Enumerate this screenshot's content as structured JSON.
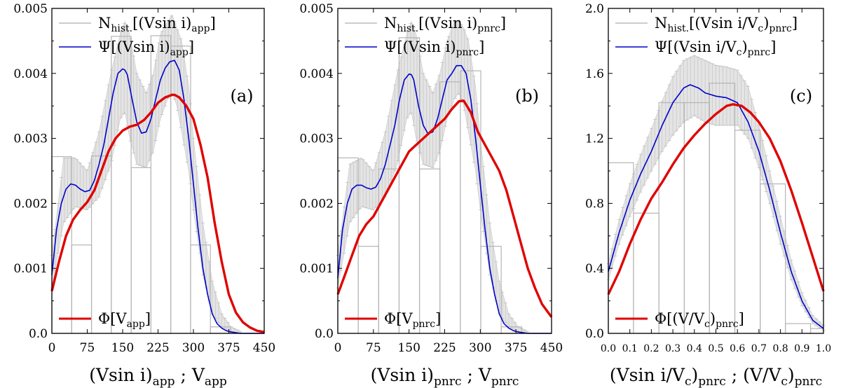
{
  "chart_data": [
    {
      "type": "line",
      "panel_label": "(a)",
      "xlim": [
        0,
        450
      ],
      "ylim": [
        0,
        0.005
      ],
      "xticks": [
        "0",
        "75",
        "150",
        "225",
        "300",
        "375",
        "450"
      ],
      "yticks": [
        "0.0",
        "0.001",
        "0.002",
        "0.003",
        "0.004",
        "0.005"
      ],
      "xlabel": {
        "a": "(Vsin i)",
        "a_sub": "app",
        "b": " ; V",
        "b_sub": "app"
      },
      "legend": [
        {
          "name": "N",
          "sub": "hist.",
          "rest": "[(Vsin i)",
          "rest_sub": "app",
          "end": "]",
          "color": "#bbbbbb"
        },
        {
          "name": "Ψ[(Vsin i)",
          "sub": "app",
          "rest": "]",
          "color": "#0000cc"
        },
        {
          "name": "Φ[V",
          "sub": "app",
          "rest": "]",
          "color": "#e00000"
        }
      ],
      "histogram": {
        "edges": [
          0,
          42,
          84,
          126,
          168,
          210,
          252,
          294,
          336,
          378
        ],
        "values": [
          0.00272,
          0.00136,
          0.00273,
          0.00457,
          0.00255,
          0.00458,
          0.00442,
          0.00136,
          0.0001
        ]
      },
      "psi": {
        "x": [
          0,
          10,
          20,
          30,
          40,
          50,
          60,
          70,
          80,
          90,
          100,
          110,
          120,
          130,
          140,
          150,
          155,
          160,
          170,
          180,
          190,
          200,
          210,
          220,
          230,
          240,
          250,
          260,
          270,
          280,
          290,
          300,
          310,
          320,
          330,
          340,
          350,
          360,
          370,
          380,
          390,
          400,
          420,
          450
        ],
        "y": [
          0.0009,
          0.0016,
          0.002,
          0.00222,
          0.0023,
          0.00228,
          0.00222,
          0.00218,
          0.0022,
          0.00235,
          0.0026,
          0.0029,
          0.0033,
          0.0037,
          0.004,
          0.00407,
          0.00405,
          0.00398,
          0.0036,
          0.00325,
          0.00308,
          0.0031,
          0.0033,
          0.0036,
          0.0039,
          0.00408,
          0.00418,
          0.0042,
          0.00405,
          0.0036,
          0.003,
          0.0023,
          0.0016,
          0.001,
          0.0006,
          0.0003,
          0.00015,
          8e-05,
          4e-05,
          2e-05,
          1e-05,
          0.0,
          0.0,
          0.0
        ]
      },
      "psi_err": {
        "x": [
          0,
          25,
          50,
          75,
          100,
          125,
          145,
          155,
          165,
          180,
          200,
          215,
          230,
          245,
          255,
          265,
          275,
          290,
          300,
          320,
          340,
          360,
          380,
          400
        ],
        "lo": [
          0.0007,
          0.0017,
          0.00195,
          0.0019,
          0.0021,
          0.0026,
          0.0033,
          0.0034,
          0.003,
          0.0026,
          0.00255,
          0.0028,
          0.0033,
          0.0036,
          0.0037,
          0.0035,
          0.0031,
          0.0025,
          0.0019,
          0.0009,
          0.0003,
          0.0001,
          3e-05,
          0.0
        ],
        "hi": [
          0.0012,
          0.0027,
          0.0027,
          0.0025,
          0.0031,
          0.004,
          0.0046,
          0.0048,
          0.0046,
          0.004,
          0.0037,
          0.004,
          0.0046,
          0.0048,
          0.0049,
          0.0047,
          0.0045,
          0.0038,
          0.003,
          0.0017,
          0.0008,
          0.0003,
          0.0001,
          3e-05
        ]
      },
      "phi": {
        "x": [
          0,
          15,
          30,
          45,
          60,
          75,
          90,
          105,
          120,
          135,
          150,
          165,
          180,
          195,
          210,
          225,
          240,
          255,
          260,
          270,
          285,
          300,
          315,
          330,
          345,
          360,
          375,
          390,
          405,
          420,
          435,
          450
        ],
        "y": [
          0.00065,
          0.0011,
          0.0015,
          0.00175,
          0.0019,
          0.00202,
          0.0022,
          0.0025,
          0.0028,
          0.003,
          0.00312,
          0.00318,
          0.00321,
          0.00328,
          0.0034,
          0.00355,
          0.00363,
          0.00367,
          0.00367,
          0.00363,
          0.0035,
          0.0033,
          0.0029,
          0.0024,
          0.0017,
          0.0011,
          0.0006,
          0.00032,
          0.00017,
          9e-05,
          4e-05,
          2e-05
        ]
      }
    },
    {
      "type": "line",
      "panel_label": "(b)",
      "xlim": [
        0,
        450
      ],
      "ylim": [
        0,
        0.005
      ],
      "xticks": [
        "0",
        "75",
        "150",
        "225",
        "300",
        "375",
        "450"
      ],
      "yticks": [
        "0.0",
        "0.001",
        "0.002",
        "0.003",
        "0.004",
        "0.005"
      ],
      "xlabel": {
        "a": "(Vsin i)",
        "a_sub": "pnrc",
        "b": " ; V",
        "b_sub": "pnrc"
      },
      "legend": [
        {
          "name": "N",
          "sub": "hist.",
          "rest": "[(Vsin i)",
          "rest_sub": "pnrc",
          "end": "]",
          "color": "#bbbbbb"
        },
        {
          "name": "Ψ[(Vsin i)",
          "sub": "pnrc",
          "rest": "]",
          "color": "#0000cc"
        },
        {
          "name": "Φ[V",
          "sub": "pnrc",
          "rest": "]",
          "color": "#e00000"
        }
      ],
      "histogram": {
        "edges": [
          0,
          43,
          86,
          129,
          172,
          215,
          258,
          301,
          344,
          387
        ],
        "values": [
          0.0027,
          0.00134,
          0.00253,
          0.00455,
          0.00253,
          0.00387,
          0.00404,
          0.00134,
          0.0001
        ]
      },
      "psi": {
        "x": [
          0,
          10,
          20,
          30,
          40,
          50,
          60,
          70,
          80,
          90,
          100,
          110,
          120,
          130,
          140,
          150,
          155,
          160,
          170,
          180,
          190,
          200,
          210,
          220,
          230,
          240,
          250,
          260,
          270,
          280,
          290,
          300,
          310,
          320,
          330,
          340,
          350,
          360,
          370,
          380,
          400,
          420,
          450
        ],
        "y": [
          0.00085,
          0.0016,
          0.002,
          0.00222,
          0.00228,
          0.00228,
          0.00224,
          0.00222,
          0.00225,
          0.00238,
          0.0026,
          0.0029,
          0.0032,
          0.0036,
          0.0039,
          0.00399,
          0.00398,
          0.0039,
          0.0035,
          0.0032,
          0.00307,
          0.0031,
          0.0033,
          0.0036,
          0.0039,
          0.004,
          0.00412,
          0.00412,
          0.004,
          0.0036,
          0.003,
          0.0023,
          0.0016,
          0.001,
          0.0006,
          0.0003,
          0.00015,
          8e-05,
          4e-05,
          2e-05,
          0.0,
          0.0,
          0.0
        ]
      },
      "psi_err": {
        "x": [
          0,
          25,
          50,
          75,
          100,
          125,
          145,
          155,
          165,
          180,
          200,
          215,
          230,
          245,
          255,
          265,
          275,
          290,
          300,
          320,
          340,
          360,
          380,
          400
        ],
        "lo": [
          0.0007,
          0.0017,
          0.00195,
          0.0019,
          0.0021,
          0.0026,
          0.0033,
          0.0034,
          0.003,
          0.0026,
          0.00255,
          0.0028,
          0.0033,
          0.0036,
          0.0037,
          0.0035,
          0.0031,
          0.0025,
          0.0019,
          0.0009,
          0.0003,
          0.0001,
          3e-05,
          0.0
        ],
        "hi": [
          0.0012,
          0.0026,
          0.0027,
          0.0025,
          0.0031,
          0.004,
          0.0046,
          0.0048,
          0.0046,
          0.004,
          0.0037,
          0.004,
          0.0045,
          0.0048,
          0.0048,
          0.0047,
          0.0045,
          0.0038,
          0.003,
          0.0017,
          0.0008,
          0.0003,
          0.0001,
          3e-05
        ]
      },
      "phi": {
        "x": [
          0,
          15,
          30,
          45,
          60,
          75,
          90,
          105,
          120,
          135,
          150,
          165,
          180,
          195,
          210,
          225,
          240,
          255,
          265,
          280,
          295,
          310,
          325,
          340,
          355,
          370,
          385,
          400,
          415,
          430,
          450
        ],
        "y": [
          0.0006,
          0.0009,
          0.0012,
          0.0015,
          0.00168,
          0.0018,
          0.002,
          0.0022,
          0.0024,
          0.0026,
          0.0028,
          0.0029,
          0.003,
          0.0031,
          0.0032,
          0.0033,
          0.00345,
          0.00357,
          0.00358,
          0.0034,
          0.0031,
          0.0029,
          0.0027,
          0.0025,
          0.0022,
          0.0018,
          0.0014,
          0.001,
          0.0007,
          0.00045,
          0.00025
        ]
      }
    },
    {
      "type": "line",
      "panel_label": "(c)",
      "xlim": [
        0,
        1
      ],
      "ylim": [
        0,
        2
      ],
      "xticks": [
        "0.0",
        "0.1",
        "0.2",
        "0.3",
        "0.4",
        "0.5",
        "0.6",
        "0.7",
        "0.8",
        "0.9",
        "1.0"
      ],
      "yticks": [
        "0.0",
        "0.4",
        "0.8",
        "1.2",
        "1.6",
        "2.0"
      ],
      "xlabel": {
        "a": "(Vsin i/V",
        "a_sub2": "c",
        "a_end": ")",
        "a_sub": "pnrc",
        "b": " ; (V/V",
        "b_sub2": "c",
        "b_end": ")",
        "b_sub": "pnrc"
      },
      "legend": [
        {
          "name": "N",
          "sub": "hist.",
          "rest": "[(Vsin i/V",
          "rest_sub": "c",
          "rest2": ")",
          "rest2_sub": "pnrc",
          "end": "]",
          "color": "#bbbbbb"
        },
        {
          "name": "Ψ[(Vsin i/V",
          "sub": "c",
          "rest": ")",
          "rest_sub": "pnrc",
          "end": "]",
          "color": "#0000cc"
        },
        {
          "name": "Φ[(V/V",
          "sub": "c",
          "rest": ")",
          "rest_sub": "pnrc",
          "end": "]",
          "color": "#e00000"
        }
      ],
      "histogram": {
        "edges": [
          0,
          0.117,
          0.235,
          0.353,
          0.47,
          0.588,
          0.706,
          0.823,
          0.94,
          1.0
        ],
        "values": [
          1.05,
          0.74,
          1.42,
          1.42,
          1.54,
          1.25,
          0.92,
          0.06,
          0.03
        ]
      },
      "psi": {
        "x": [
          0,
          0.05,
          0.1,
          0.15,
          0.2,
          0.25,
          0.3,
          0.35,
          0.38,
          0.42,
          0.45,
          0.5,
          0.55,
          0.6,
          0.65,
          0.7,
          0.75,
          0.8,
          0.85,
          0.9,
          0.95,
          1.0
        ],
        "y": [
          0.38,
          0.62,
          0.82,
          0.98,
          1.12,
          1.28,
          1.42,
          1.51,
          1.53,
          1.51,
          1.48,
          1.46,
          1.45,
          1.42,
          1.3,
          1.12,
          0.88,
          0.62,
          0.38,
          0.2,
          0.08,
          0.03
        ]
      },
      "psi_err": {
        "x": [
          0,
          0.05,
          0.1,
          0.15,
          0.2,
          0.25,
          0.3,
          0.35,
          0.4,
          0.45,
          0.5,
          0.55,
          0.6,
          0.65,
          0.7,
          0.75,
          0.8,
          0.85,
          0.9,
          0.95,
          1.0
        ],
        "lo": [
          0.33,
          0.55,
          0.72,
          0.87,
          1.0,
          1.12,
          1.22,
          1.3,
          1.34,
          1.3,
          1.28,
          1.28,
          1.28,
          1.2,
          1.02,
          0.8,
          0.55,
          0.33,
          0.17,
          0.06,
          0.02
        ],
        "hi": [
          0.43,
          0.7,
          0.92,
          1.1,
          1.26,
          1.43,
          1.58,
          1.68,
          1.71,
          1.68,
          1.65,
          1.64,
          1.62,
          1.52,
          1.28,
          1.0,
          0.72,
          0.45,
          0.25,
          0.11,
          0.05
        ]
      },
      "phi": {
        "x": [
          0,
          0.05,
          0.1,
          0.15,
          0.2,
          0.25,
          0.3,
          0.35,
          0.4,
          0.45,
          0.5,
          0.55,
          0.58,
          0.62,
          0.66,
          0.7,
          0.75,
          0.8,
          0.85,
          0.9,
          0.95,
          1.0
        ],
        "y": [
          0.24,
          0.38,
          0.55,
          0.7,
          0.83,
          0.93,
          1.04,
          1.14,
          1.22,
          1.29,
          1.35,
          1.4,
          1.41,
          1.4,
          1.36,
          1.3,
          1.2,
          1.06,
          0.88,
          0.68,
          0.47,
          0.26
        ]
      }
    }
  ]
}
